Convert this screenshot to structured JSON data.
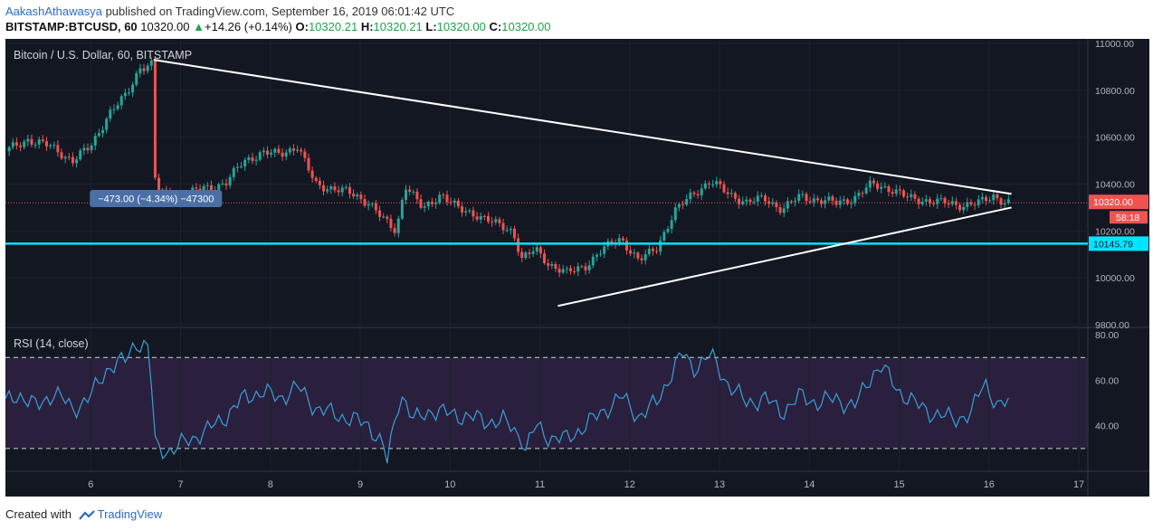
{
  "header": {
    "author": "AakashAthawasya",
    "published_text": " published on TradingView.com, September 16, 2019 06:01:42 UTC",
    "symbol": "BITSTAMP:BTCUSD, 60",
    "last": "10320.00",
    "change_arrow": "▲",
    "change": "+14.26 (+0.14%)",
    "open_label": "O:",
    "open": "10320.21",
    "high_label": "H:",
    "high": "10320.21",
    "low_label": "L:",
    "low": "10320.00",
    "close_label": "C:",
    "close": "10320.00"
  },
  "footer": {
    "created_with": "Created with",
    "brand": "TradingView"
  },
  "colors": {
    "background": "#131722",
    "up": "#26a69a",
    "down": "#ef5350",
    "support": "#00e5ff",
    "rsi": "#3aa0d8",
    "rsi_band": "#2a1f3d",
    "price_tag": "#ef5350"
  },
  "chart_data": [
    {
      "type": "candlestick",
      "title": "Bitcoin / U.S. Dollar, 60, BITSTAMP",
      "x_ticks": [
        "6",
        "7",
        "8",
        "9",
        "10",
        "11",
        "12",
        "13",
        "14",
        "15",
        "16",
        "17"
      ],
      "y_ticks": [
        "11000.00",
        "10800.00",
        "10600.00",
        "10400.00",
        "10200.00",
        "10000.00",
        "9800.00"
      ],
      "ylim": [
        9800,
        11000
      ],
      "last_price_label": "10320.00",
      "countdown_label": "58:18",
      "horizontal_line_label": "10145.79",
      "horizontal_line_value": 10145.79,
      "measure_label": "−473.00 (−4.34%) −47300",
      "trendlines": [
        {
          "name": "upper",
          "from": [
            6.7,
            10930
          ],
          "to": [
            16.25,
            10358
          ]
        },
        {
          "name": "lower",
          "from": [
            11.2,
            9880
          ],
          "to": [
            16.25,
            10300
          ]
        }
      ],
      "price_path": [
        [
          5.05,
          10540
        ],
        [
          5.3,
          10590
        ],
        [
          5.55,
          10560
        ],
        [
          5.8,
          10500
        ],
        [
          6.0,
          10560
        ],
        [
          6.2,
          10700
        ],
        [
          6.4,
          10780
        ],
        [
          6.55,
          10900
        ],
        [
          6.68,
          10910
        ],
        [
          6.72,
          10380
        ],
        [
          6.85,
          10350
        ],
        [
          7.0,
          10330
        ],
        [
          7.2,
          10380
        ],
        [
          7.5,
          10400
        ],
        [
          7.7,
          10500
        ],
        [
          7.9,
          10530
        ],
        [
          8.1,
          10530
        ],
        [
          8.3,
          10560
        ],
        [
          8.5,
          10400
        ],
        [
          8.7,
          10380
        ],
        [
          8.9,
          10360
        ],
        [
          9.1,
          10320
        ],
        [
          9.25,
          10250
        ],
        [
          9.4,
          10200
        ],
        [
          9.5,
          10400
        ],
        [
          9.7,
          10290
        ],
        [
          9.9,
          10360
        ],
        [
          10.1,
          10290
        ],
        [
          10.3,
          10270
        ],
        [
          10.5,
          10230
        ],
        [
          10.7,
          10200
        ],
        [
          10.8,
          10080
        ],
        [
          10.95,
          10120
        ],
        [
          11.1,
          10060
        ],
        [
          11.3,
          10020
        ],
        [
          11.5,
          10050
        ],
        [
          11.7,
          10120
        ],
        [
          11.9,
          10170
        ],
        [
          12.1,
          10070
        ],
        [
          12.3,
          10130
        ],
        [
          12.5,
          10280
        ],
        [
          12.7,
          10360
        ],
        [
          12.9,
          10410
        ],
        [
          13.1,
          10360
        ],
        [
          13.3,
          10320
        ],
        [
          13.5,
          10340
        ],
        [
          13.7,
          10290
        ],
        [
          13.9,
          10350
        ],
        [
          14.1,
          10330
        ],
        [
          14.3,
          10320
        ],
        [
          14.5,
          10340
        ],
        [
          14.7,
          10400
        ],
        [
          14.9,
          10380
        ],
        [
          15.1,
          10340
        ],
        [
          15.3,
          10330
        ],
        [
          15.5,
          10320
        ],
        [
          15.7,
          10310
        ],
        [
          15.9,
          10320
        ],
        [
          16.05,
          10350
        ],
        [
          16.2,
          10320
        ]
      ]
    },
    {
      "type": "line",
      "title": "RSI (14, close)",
      "y_ticks": [
        "80.00",
        "60.00",
        "40.00"
      ],
      "ylim": [
        20,
        82
      ],
      "bands": [
        30,
        70
      ],
      "series": [
        {
          "values": [
            [
              5.05,
              50
            ],
            [
              5.2,
              54
            ],
            [
              5.4,
              48
            ],
            [
              5.6,
              55
            ],
            [
              5.8,
              47
            ],
            [
              6.0,
              53
            ],
            [
              6.2,
              66
            ],
            [
              6.4,
              69
            ],
            [
              6.5,
              77
            ],
            [
              6.65,
              74
            ],
            [
              6.72,
              30
            ],
            [
              6.9,
              29
            ],
            [
              7.1,
              34
            ],
            [
              7.3,
              38
            ],
            [
              7.5,
              44
            ],
            [
              7.7,
              52
            ],
            [
              7.9,
              55
            ],
            [
              8.1,
              52
            ],
            [
              8.3,
              57
            ],
            [
              8.5,
              48
            ],
            [
              8.7,
              45
            ],
            [
              8.9,
              43
            ],
            [
              9.1,
              40
            ],
            [
              9.25,
              32
            ],
            [
              9.3,
              24
            ],
            [
              9.45,
              55
            ],
            [
              9.6,
              42
            ],
            [
              9.8,
              47
            ],
            [
              10.0,
              45
            ],
            [
              10.2,
              44
            ],
            [
              10.4,
              42
            ],
            [
              10.6,
              42
            ],
            [
              10.8,
              35
            ],
            [
              10.8,
              25
            ],
            [
              10.95,
              40
            ],
            [
              11.1,
              35
            ],
            [
              11.3,
              34
            ],
            [
              11.5,
              40
            ],
            [
              11.7,
              46
            ],
            [
              11.9,
              53
            ],
            [
              12.1,
              44
            ],
            [
              12.3,
              50
            ],
            [
              12.5,
              66
            ],
            [
              12.6,
              72
            ],
            [
              12.7,
              65
            ],
            [
              12.9,
              71
            ],
            [
              13.1,
              58
            ],
            [
              13.3,
              50
            ],
            [
              13.5,
              52
            ],
            [
              13.7,
              46
            ],
            [
              13.9,
              53
            ],
            [
              14.1,
              50
            ],
            [
              14.3,
              52
            ],
            [
              14.5,
              48
            ],
            [
              14.7,
              63
            ],
            [
              14.8,
              66
            ],
            [
              15.0,
              55
            ],
            [
              15.2,
              49
            ],
            [
              15.4,
              45
            ],
            [
              15.6,
              43
            ],
            [
              15.8,
              45
            ],
            [
              15.95,
              60
            ],
            [
              16.1,
              48
            ],
            [
              16.2,
              50
            ]
          ]
        }
      ]
    }
  ]
}
